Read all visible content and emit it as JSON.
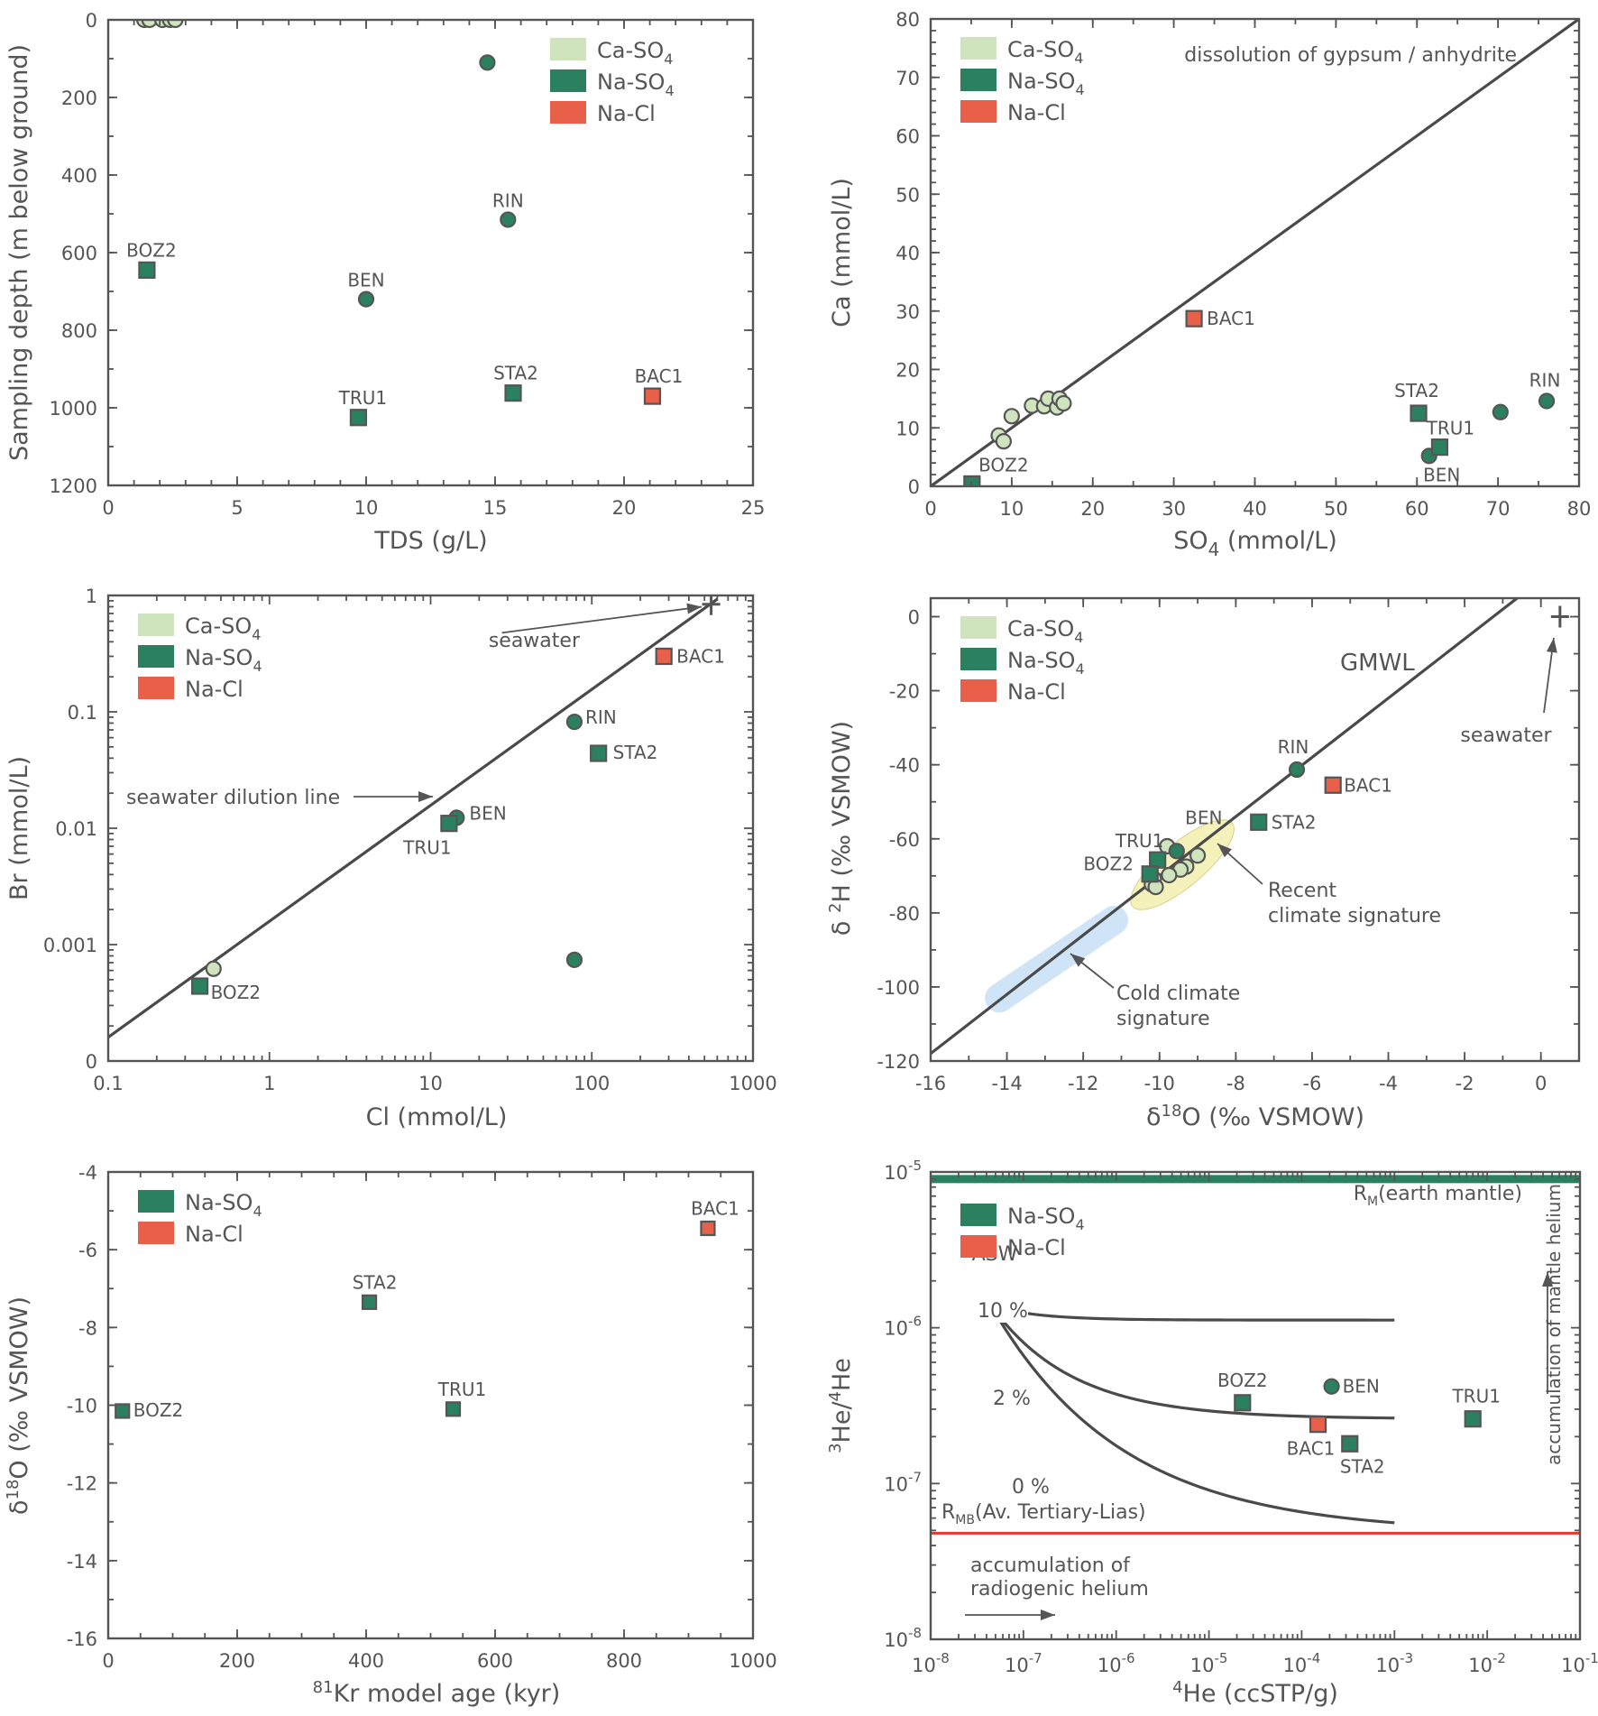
{
  "colors": {
    "Ca-SO4": "#cfe3bd",
    "Na-SO4": "#2b8060",
    "Na-Cl": "#e8604a",
    "axis": "#555555",
    "recent_ellipse": "#f4f1bb",
    "cold_band": "#cfe4f6",
    "mantle_line": "#2b8060",
    "rmb_line": "#e03a2a"
  },
  "chart_data": [
    {
      "id": "tds_depth",
      "type": "scatter",
      "title": "",
      "xlabel": "TDS (g/L)",
      "ylabel": "Sampling depth (m below ground)",
      "xlim": [
        0,
        25
      ],
      "ylim": [
        1200,
        0
      ],
      "y_inverted": true,
      "xscale": "linear",
      "yscale": "linear",
      "xticks": [
        0,
        5,
        10,
        15,
        20,
        25
      ],
      "yticks": [
        0,
        200,
        400,
        600,
        800,
        1000,
        1200
      ],
      "legend": {
        "placement": "top-right",
        "entries": [
          "Ca-SO4",
          "Na-SO4",
          "Na-Cl"
        ]
      },
      "series": [
        {
          "name": "Ca-SO4",
          "marker": "circle",
          "points": [
            {
              "x": 1.4,
              "y": 0
            },
            {
              "x": 1.6,
              "y": 0
            },
            {
              "x": 2.1,
              "y": 0
            },
            {
              "x": 2.4,
              "y": 0
            },
            {
              "x": 2.6,
              "y": 0
            }
          ]
        },
        {
          "name": "Na-SO4",
          "marker": "circle",
          "points": [
            {
              "x": 14.7,
              "y": 110,
              "label": ""
            },
            {
              "x": 15.5,
              "y": 515,
              "label": "RIN"
            },
            {
              "x": 10.0,
              "y": 720,
              "label": "BEN"
            }
          ]
        },
        {
          "name": "Na-SO4",
          "marker": "square",
          "points": [
            {
              "x": 1.5,
              "y": 645,
              "label": "BOZ2"
            },
            {
              "x": 9.7,
              "y": 1025,
              "label": "TRU1"
            },
            {
              "x": 15.7,
              "y": 962,
              "label": "STA2"
            }
          ]
        },
        {
          "name": "Na-Cl",
          "marker": "square",
          "points": [
            {
              "x": 21.1,
              "y": 970,
              "label": "BAC1"
            }
          ]
        }
      ],
      "annotations": []
    },
    {
      "id": "so4_ca",
      "type": "scatter",
      "title": "",
      "xlabel": "SO4 (mmol/L)",
      "ylabel": "Ca (mmol/L)",
      "xlim": [
        0,
        80
      ],
      "ylim": [
        0,
        80
      ],
      "xscale": "linear",
      "yscale": "linear",
      "xticks": [
        0,
        10,
        20,
        30,
        40,
        50,
        60,
        70,
        80
      ],
      "yticks": [
        0,
        10,
        20,
        30,
        40,
        50,
        60,
        70,
        80
      ],
      "legend": {
        "placement": "top-left",
        "entries": [
          "Ca-SO4",
          "Na-SO4",
          "Na-Cl"
        ]
      },
      "lines": [
        {
          "name": "dissolution of gypsum / anhydrite",
          "x": [
            0,
            80
          ],
          "y": [
            0,
            80
          ]
        }
      ],
      "series": [
        {
          "name": "Ca-SO4",
          "marker": "circle",
          "points": [
            {
              "x": 8.4,
              "y": 8.7
            },
            {
              "x": 9.0,
              "y": 7.7
            },
            {
              "x": 10.0,
              "y": 12.0
            },
            {
              "x": 12.5,
              "y": 13.8
            },
            {
              "x": 14.0,
              "y": 13.7
            },
            {
              "x": 14.5,
              "y": 15.0
            },
            {
              "x": 15.6,
              "y": 13.5
            },
            {
              "x": 15.9,
              "y": 15.0
            },
            {
              "x": 16.4,
              "y": 14.2
            }
          ]
        },
        {
          "name": "Na-SO4",
          "marker": "circle",
          "points": [
            {
              "x": 61.5,
              "y": 5.2,
              "label": "BEN"
            },
            {
              "x": 70.3,
              "y": 12.7,
              "label": ""
            },
            {
              "x": 76.0,
              "y": 14.6,
              "label": "RIN"
            }
          ]
        },
        {
          "name": "Na-SO4",
          "marker": "square",
          "points": [
            {
              "x": 5.1,
              "y": 0.4,
              "label": "BOZ2"
            },
            {
              "x": 60.2,
              "y": 12.5,
              "label": "STA2"
            },
            {
              "x": 62.8,
              "y": 6.7,
              "label": "TRU1"
            }
          ]
        },
        {
          "name": "Na-Cl",
          "marker": "square",
          "points": [
            {
              "x": 32.5,
              "y": 28.7,
              "label": "BAC1"
            }
          ]
        }
      ],
      "annotations": [
        {
          "text": "dissolution of gypsum / anhydrite",
          "x": 50,
          "y": 74
        }
      ]
    },
    {
      "id": "cl_br",
      "type": "scatter",
      "title": "",
      "xlabel": "Cl (mmol/L)",
      "ylabel": "Br (mmol/L)",
      "xlim": [
        0.1,
        1000
      ],
      "ylim": [
        0.0001,
        1
      ],
      "xscale": "log",
      "yscale": "log",
      "xticks": [
        0.1,
        1,
        10,
        100,
        1000
      ],
      "xticklabels": [
        "0.1",
        "1",
        "10",
        "100",
        "1000"
      ],
      "yticks": [
        0.0001,
        0.001,
        0.01,
        0.1,
        1
      ],
      "yticklabels": [
        "0",
        "0.001",
        "0.01",
        "0.1",
        "1"
      ],
      "legend": {
        "placement": "top-left",
        "entries": [
          "Ca-SO4",
          "Na-SO4",
          "Na-Cl"
        ]
      },
      "lines": [
        {
          "name": "seawater dilution line",
          "x": [
            0.1,
            600
          ],
          "y": [
            0.00016,
            0.93
          ]
        }
      ],
      "series": [
        {
          "name": "Ca-SO4",
          "marker": "circle",
          "points": [
            {
              "x": 0.45,
              "y": 0.00062
            }
          ]
        },
        {
          "name": "Na-SO4",
          "marker": "circle",
          "points": [
            {
              "x": 78,
              "y": 0.082,
              "label": "RIN"
            },
            {
              "x": 14.5,
              "y": 0.0123,
              "label": "BEN"
            },
            {
              "x": 78,
              "y": 0.00074,
              "label": ""
            }
          ]
        },
        {
          "name": "Na-SO4",
          "marker": "square",
          "points": [
            {
              "x": 13,
              "y": 0.011,
              "label": "TRU1"
            },
            {
              "x": 110,
              "y": 0.044,
              "label": "STA2"
            },
            {
              "x": 0.37,
              "y": 0.00044,
              "label": "BOZ2"
            }
          ]
        },
        {
          "name": "Na-Cl",
          "marker": "square",
          "points": [
            {
              "x": 280,
              "y": 0.3,
              "label": "BAC1"
            }
          ]
        },
        {
          "name": "seawater",
          "marker": "plus",
          "points": [
            {
              "x": 550,
              "y": 0.84
            }
          ]
        }
      ],
      "annotations": [
        {
          "text": "seawater",
          "x": 25,
          "y": 0.4,
          "arrow_to": [
            480,
            0.8
          ]
        },
        {
          "text": "seawater dilution line",
          "x": 0.5,
          "y": 0.02,
          "arrow_to": [
            10,
            0.02
          ]
        }
      ]
    },
    {
      "id": "d18o_d2h",
      "type": "scatter",
      "title": "",
      "xlabel": "δ18O (‰ VSMOW)",
      "ylabel": "δ 2H (‰ VSMOW)",
      "xlim": [
        -16,
        1
      ],
      "ylim": [
        -120,
        5
      ],
      "xscale": "linear",
      "yscale": "linear",
      "xticks": [
        -16,
        -14,
        -12,
        -10,
        -8,
        -6,
        -4,
        -2,
        0
      ],
      "yticks": [
        -120,
        -100,
        -80,
        -60,
        -40,
        -20,
        0
      ],
      "legend": {
        "placement": "top-left",
        "entries": [
          "Ca-SO4",
          "Na-SO4",
          "Na-Cl"
        ]
      },
      "lines": [
        {
          "name": "GMWL",
          "x": [
            -16,
            -0.6
          ],
          "y": [
            -118,
            5.2
          ]
        }
      ],
      "series": [
        {
          "name": "Ca-SO4",
          "marker": "circle",
          "points": [
            {
              "x": -9.8,
              "y": -62.0
            },
            {
              "x": -9.0,
              "y": -64.5
            },
            {
              "x": -9.3,
              "y": -67.5
            },
            {
              "x": -9.45,
              "y": -68.3
            },
            {
              "x": -9.75,
              "y": -69.8
            },
            {
              "x": -10.15,
              "y": -70.8
            },
            {
              "x": -10.2,
              "y": -72.3
            },
            {
              "x": -10.1,
              "y": -73.0
            }
          ]
        },
        {
          "name": "Na-SO4",
          "marker": "circle",
          "points": [
            {
              "x": -6.4,
              "y": -41.3,
              "label": "RIN"
            },
            {
              "x": -9.55,
              "y": -63.3,
              "label": "BEN"
            }
          ]
        },
        {
          "name": "Na-SO4",
          "marker": "square",
          "points": [
            {
              "x": -7.4,
              "y": -55.5,
              "label": "STA2"
            },
            {
              "x": -10.05,
              "y": -65.7,
              "label": "TRU1"
            },
            {
              "x": -10.25,
              "y": -69.5,
              "label": "BOZ2"
            }
          ]
        },
        {
          "name": "Na-Cl",
          "marker": "square",
          "points": [
            {
              "x": -5.45,
              "y": -45.5,
              "label": "BAC1"
            }
          ]
        },
        {
          "name": "seawater",
          "marker": "plus",
          "points": [
            {
              "x": 0.5,
              "y": 0
            }
          ]
        }
      ],
      "annotations": [
        {
          "text": "GMWL",
          "x": -5.5,
          "y": -13
        },
        {
          "text": "seawater",
          "x": 0.2,
          "y": -34
        },
        {
          "text": "Recent climate signature",
          "x": -7.3,
          "y": -75
        },
        {
          "text": "Cold climate signature",
          "x": -11.2,
          "y": -104
        }
      ],
      "regions": [
        {
          "name": "Recent climate signature",
          "shape": "ellipse",
          "center": [
            -9.4,
            -67
          ],
          "color_key": "recent_ellipse"
        },
        {
          "name": "Cold climate signature",
          "shape": "band",
          "from": [
            -14.2,
            -103
          ],
          "to": [
            -11.2,
            -82
          ],
          "color_key": "cold_band"
        }
      ]
    },
    {
      "id": "kr_age_d18o",
      "type": "scatter",
      "title": "",
      "xlabel": "81Kr model age (kyr)",
      "ylabel": "δ18O (‰ VSMOW)",
      "xlim": [
        0,
        1000
      ],
      "ylim": [
        -16,
        -4
      ],
      "xscale": "linear",
      "yscale": "linear",
      "xticks": [
        0,
        200,
        400,
        600,
        800,
        1000
      ],
      "yticks": [
        -16,
        -14,
        -12,
        -10,
        -8,
        -6,
        -4
      ],
      "legend": {
        "placement": "top-left",
        "entries": [
          "Na-SO4",
          "Na-Cl"
        ]
      },
      "series": [
        {
          "name": "Na-SO4",
          "marker": "square",
          "points": [
            {
              "x": 22,
              "y": -10.15,
              "label": "BOZ2"
            },
            {
              "x": 405,
              "y": -7.35,
              "label": "STA2"
            },
            {
              "x": 535,
              "y": -10.1,
              "label": "TRU1"
            }
          ]
        },
        {
          "name": "Na-Cl",
          "marker": "square",
          "points": [
            {
              "x": 930,
              "y": -5.45,
              "label": "BAC1"
            }
          ]
        }
      ],
      "annotations": []
    },
    {
      "id": "he4_he_ratio",
      "type": "scatter",
      "title": "",
      "xlabel": "4He (ccSTP/g)",
      "ylabel": "3He/4He",
      "xlim": [
        1e-08,
        0.1
      ],
      "ylim": [
        1e-08,
        1e-05
      ],
      "xscale": "log",
      "yscale": "log",
      "xticks": [
        1e-08,
        1e-07,
        1e-06,
        1e-05,
        0.0001,
        0.001,
        0.01,
        0.1
      ],
      "xticklabels": [
        "10-8",
        "10-7",
        "10-6",
        "10-5",
        "10-4",
        "10-3",
        "10-2",
        "10-1"
      ],
      "yticks": [
        1e-08,
        1e-07,
        1e-06,
        1e-05
      ],
      "yticklabels": [
        "10-8",
        "10-7",
        "10-6",
        "10-5"
      ],
      "legend": {
        "placement": "top-left",
        "entries": [
          "Na-SO4",
          "Na-Cl"
        ]
      },
      "hlines": [
        {
          "name": "RM (earth mantle)",
          "y": 9e-06,
          "color_key": "mantle_line"
        },
        {
          "name": "RMB (Av. Tertiary-Lias)",
          "y": 4.8e-08,
          "color_key": "rmb_line"
        }
      ],
      "curves": [
        {
          "name": "10%",
          "x0": 4.5e-08,
          "y0": 1.38e-06,
          "xend": 0.001,
          "yend": 1.12e-06
        },
        {
          "name": "2%",
          "x0": 4.5e-08,
          "y0": 1.38e-06,
          "xend": 0.001,
          "yend": 2.6e-07
        },
        {
          "name": "0%",
          "x0": 4.5e-08,
          "y0": 1.38e-06,
          "xend": 0.001,
          "yend": 4.8e-08
        }
      ],
      "series": [
        {
          "name": "ASW",
          "marker": "diamond",
          "points": [
            {
              "x": 4.5e-08,
              "y": 1.38e-06,
              "label": "ASW"
            }
          ]
        },
        {
          "name": "Na-SO4",
          "marker": "circle",
          "points": [
            {
              "x": 0.00021,
              "y": 4.2e-07,
              "label": "BEN"
            }
          ]
        },
        {
          "name": "Na-SO4",
          "marker": "square",
          "points": [
            {
              "x": 2.3e-05,
              "y": 3.3e-07,
              "label": "BOZ2"
            },
            {
              "x": 0.00033,
              "y": 1.8e-07,
              "label": "STA2"
            },
            {
              "x": 0.007,
              "y": 2.6e-07,
              "label": "TRU1"
            }
          ]
        },
        {
          "name": "Na-Cl",
          "marker": "square",
          "points": [
            {
              "x": 0.00015,
              "y": 2.4e-07,
              "label": "BAC1"
            }
          ]
        }
      ],
      "annotations": [
        {
          "text": "RM(earth mantle)"
        },
        {
          "text": "RMB(Av. Tertiary-Lias)"
        },
        {
          "text": "accumulation of mantle helium"
        },
        {
          "text": "accumulation of radiogenic helium"
        },
        {
          "text": "10%"
        },
        {
          "text": "2%"
        },
        {
          "text": "0%"
        }
      ]
    }
  ],
  "text": {
    "p1": {
      "xlabel": "TDS (g/L)",
      "ylabel": "Sampling depth (m below ground)"
    },
    "p2": {
      "xlabel_a": "SO",
      "xlabel_sub": "4",
      "xlabel_b": " (mmol/L)",
      "ylabel": "Ca (mmol/L)",
      "line_label": "dissolution of gypsum / anhydrite"
    },
    "p3": {
      "xlabel": "Cl (mmol/L)",
      "ylabel": "Br (mmol/L)",
      "seawater": "seawater",
      "dilution": "seawater dilution line"
    },
    "p4": {
      "xlabel_a": "δ",
      "xlabel_sup": "18",
      "xlabel_b": "O (‰ VSMOW)",
      "ylabel_a": "δ ",
      "ylabel_sup": "2",
      "ylabel_b": "H (‰ VSMOW)",
      "gmwl": "GMWL",
      "seawater": "seawater",
      "recent_1": "Recent",
      "recent_2": "climate signature",
      "cold_1": "Cold climate",
      "cold_2": "signature"
    },
    "p5": {
      "xlabel_sup": "81",
      "xlabel_b": "Kr model age (kyr)",
      "ylabel_a": "δ",
      "ylabel_sup": "18",
      "ylabel_b": "O  (‰ VSMOW)"
    },
    "p6": {
      "xlabel_sup": "4",
      "xlabel_b": "He  (ccSTP/g)",
      "ylabel_sup1": "3",
      "ylabel_b1": "He/",
      "ylabel_sup2": "4",
      "ylabel_b2": "He",
      "rm_a": "R",
      "rm_sub": "M",
      "rm_b": "(earth mantle)",
      "rmb_a": "R",
      "rmb_sub": "MB",
      "rmb_b": "(Av. Tertiary-Lias)",
      "mantle_acc": "accumulation of mantle helium",
      "radio_1": "accumulation of",
      "radio_2": "radiogenic helium",
      "asw": "ASW",
      "c10": "10 %",
      "c2": "2 %",
      "c0": "0 %"
    },
    "legend": {
      "caso4_a": "Ca-SO",
      "naso4_a": "Na-SO",
      "sub4": "4",
      "nacl": "Na-Cl"
    }
  }
}
